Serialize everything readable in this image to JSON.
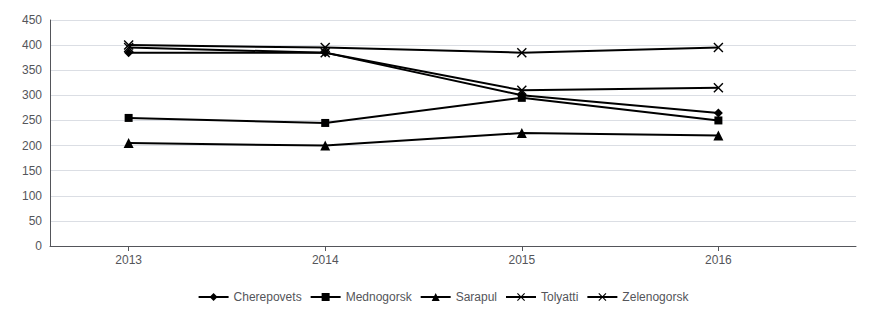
{
  "chart_data": {
    "type": "line",
    "x": [
      2013,
      2014,
      2015,
      2016
    ],
    "xlim": [
      2012.6,
      2016.7
    ],
    "xticks": [
      2013,
      2014,
      2015,
      2016
    ],
    "ylim": [
      0,
      450
    ],
    "yticks": [
      0,
      50,
      100,
      150,
      200,
      250,
      300,
      350,
      400,
      450
    ],
    "grid": true,
    "legend": "bottom",
    "series": [
      {
        "name": "Cherepovets",
        "color": "#000000",
        "marker": "diamond",
        "values": [
          385,
          385,
          300,
          265
        ]
      },
      {
        "name": "Mednogorsk",
        "color": "#000000",
        "marker": "square",
        "values": [
          255,
          245,
          295,
          250
        ]
      },
      {
        "name": "Sarapul",
        "color": "#000000",
        "marker": "triangle",
        "values": [
          205,
          200,
          225,
          220
        ]
      },
      {
        "name": "Tolyatti",
        "color": "#000000",
        "marker": "x",
        "values": [
          395,
          385,
          310,
          315
        ]
      },
      {
        "name": "Zelenogorsk",
        "color": "#000000",
        "marker": "x",
        "values": [
          400,
          395,
          385,
          395
        ]
      }
    ]
  }
}
